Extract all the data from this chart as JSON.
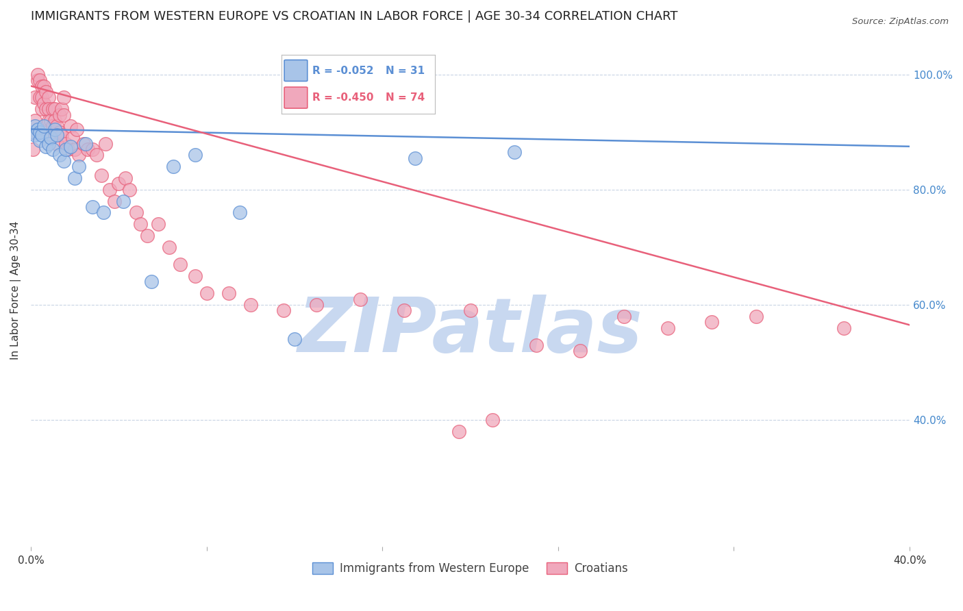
{
  "title": "IMMIGRANTS FROM WESTERN EUROPE VS CROATIAN IN LABOR FORCE | AGE 30-34 CORRELATION CHART",
  "source": "Source: ZipAtlas.com",
  "ylabel": "In Labor Force | Age 30-34",
  "xlim": [
    0.0,
    0.4
  ],
  "ylim": [
    0.18,
    1.07
  ],
  "xticks": [
    0.0,
    0.08,
    0.16,
    0.24,
    0.32,
    0.4
  ],
  "xticklabels": [
    "0.0%",
    "",
    "",
    "",
    "",
    "40.0%"
  ],
  "yticks_right": [
    0.4,
    0.6,
    0.8,
    1.0
  ],
  "ytick_right_labels": [
    "40.0%",
    "60.0%",
    "80.0%",
    "100.0%"
  ],
  "blue_color": "#5B8FD4",
  "pink_color": "#E8607A",
  "blue_fill": "#A8C4E8",
  "pink_fill": "#F0A8BC",
  "legend_R_blue": "R = -0.052",
  "legend_N_blue": "N = 31",
  "legend_R_pink": "R = -0.450",
  "legend_N_pink": "N = 74",
  "blue_trend_x": [
    0.0,
    0.4
  ],
  "blue_trend_y": [
    0.905,
    0.875
  ],
  "pink_trend_x": [
    0.0,
    0.4
  ],
  "pink_trend_y": [
    0.98,
    0.565
  ],
  "blue_scatter_x": [
    0.001,
    0.002,
    0.002,
    0.003,
    0.004,
    0.004,
    0.005,
    0.006,
    0.007,
    0.008,
    0.009,
    0.01,
    0.011,
    0.012,
    0.013,
    0.015,
    0.016,
    0.018,
    0.02,
    0.022,
    0.025,
    0.028,
    0.033,
    0.042,
    0.055,
    0.065,
    0.075,
    0.095,
    0.12,
    0.175,
    0.22
  ],
  "blue_scatter_y": [
    0.9,
    0.91,
    0.895,
    0.905,
    0.885,
    0.9,
    0.895,
    0.91,
    0.875,
    0.88,
    0.89,
    0.87,
    0.905,
    0.895,
    0.86,
    0.85,
    0.87,
    0.875,
    0.82,
    0.84,
    0.88,
    0.77,
    0.76,
    0.78,
    0.64,
    0.84,
    0.86,
    0.76,
    0.54,
    0.855,
    0.865
  ],
  "pink_scatter_x": [
    0.001,
    0.001,
    0.002,
    0.002,
    0.003,
    0.003,
    0.004,
    0.004,
    0.005,
    0.005,
    0.005,
    0.006,
    0.006,
    0.007,
    0.007,
    0.008,
    0.008,
    0.008,
    0.009,
    0.009,
    0.01,
    0.01,
    0.011,
    0.011,
    0.012,
    0.012,
    0.013,
    0.013,
    0.014,
    0.014,
    0.015,
    0.015,
    0.016,
    0.017,
    0.018,
    0.019,
    0.02,
    0.021,
    0.022,
    0.024,
    0.026,
    0.028,
    0.03,
    0.032,
    0.034,
    0.036,
    0.038,
    0.04,
    0.043,
    0.045,
    0.048,
    0.05,
    0.053,
    0.058,
    0.063,
    0.068,
    0.075,
    0.08,
    0.09,
    0.1,
    0.115,
    0.13,
    0.15,
    0.17,
    0.2,
    0.23,
    0.25,
    0.27,
    0.29,
    0.31,
    0.33,
    0.37,
    0.195,
    0.21
  ],
  "pink_scatter_y": [
    0.9,
    0.87,
    0.96,
    0.92,
    0.99,
    1.0,
    0.99,
    0.96,
    0.98,
    0.96,
    0.94,
    0.98,
    0.95,
    0.97,
    0.94,
    0.96,
    0.92,
    0.94,
    0.92,
    0.895,
    0.94,
    0.91,
    0.94,
    0.92,
    0.91,
    0.88,
    0.93,
    0.9,
    0.94,
    0.895,
    0.96,
    0.93,
    0.88,
    0.87,
    0.91,
    0.89,
    0.87,
    0.905,
    0.86,
    0.88,
    0.87,
    0.87,
    0.86,
    0.825,
    0.88,
    0.8,
    0.78,
    0.81,
    0.82,
    0.8,
    0.76,
    0.74,
    0.72,
    0.74,
    0.7,
    0.67,
    0.65,
    0.62,
    0.62,
    0.6,
    0.59,
    0.6,
    0.61,
    0.59,
    0.59,
    0.53,
    0.52,
    0.58,
    0.56,
    0.57,
    0.58,
    0.56,
    0.38,
    0.4
  ],
  "watermark": "ZIPatlas",
  "watermark_color": "#C8D8F0",
  "background_color": "#FFFFFF",
  "grid_color": "#C8D4E4",
  "title_fontsize": 13,
  "label_fontsize": 11,
  "tick_fontsize": 11,
  "right_tick_color": "#4488CC"
}
